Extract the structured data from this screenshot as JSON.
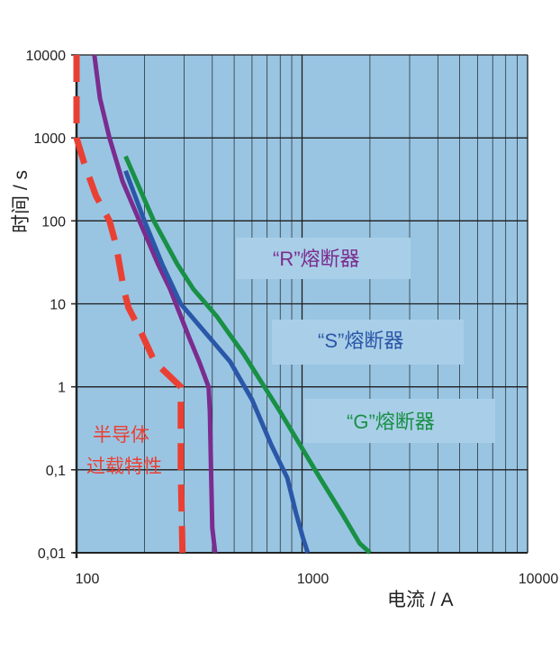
{
  "chart_data": {
    "type": "line",
    "title": "",
    "xlabel": "电流 / A",
    "ylabel": "时间 / s",
    "x_scale": "log",
    "y_scale": "log",
    "xlim": [
      100,
      10000
    ],
    "ylim": [
      0.01,
      10000
    ],
    "x_ticks": [
      "100",
      "1000",
      "10000"
    ],
    "y_ticks": [
      "0,01",
      "0,1",
      "1",
      "10",
      "100",
      "1000",
      "10000"
    ],
    "grid": true,
    "colors": {
      "plot_background": "#99c5e3",
      "grid": "#1e1e1e",
      "label_box": "#a9cfe8"
    },
    "series": [
      {
        "name": "半导体过载特性",
        "color": "#ea4033",
        "style": "dashed",
        "points": [
          [
            100,
            10000
          ],
          [
            100,
            1000
          ],
          [
            108,
            500
          ],
          [
            122,
            200
          ],
          [
            140,
            100
          ],
          [
            150,
            50
          ],
          [
            162,
            15
          ],
          [
            170,
            9
          ],
          [
            190,
            5
          ],
          [
            222,
            2
          ],
          [
            290,
            1
          ],
          [
            290,
            0.1
          ],
          [
            295,
            0.01
          ]
        ]
      },
      {
        "name": "“R”熔断器",
        "color": "#7b2c8e",
        "style": "solid",
        "points": [
          [
            120,
            10000
          ],
          [
            127,
            3000
          ],
          [
            140,
            1000
          ],
          [
            160,
            300
          ],
          [
            190,
            100
          ],
          [
            230,
            30
          ],
          [
            260,
            15
          ],
          [
            285,
            8
          ],
          [
            315,
            4
          ],
          [
            350,
            2
          ],
          [
            385,
            1
          ],
          [
            390,
            0.5
          ],
          [
            395,
            0.1
          ],
          [
            400,
            0.02
          ],
          [
            412,
            0.01
          ]
        ]
      },
      {
        "name": "“S”熔断器",
        "color": "#2b57a8",
        "style": "solid",
        "points": [
          [
            165,
            400
          ],
          [
            200,
            100
          ],
          [
            240,
            30
          ],
          [
            290,
            10
          ],
          [
            360,
            5
          ],
          [
            480,
            2
          ],
          [
            600,
            0.7
          ],
          [
            730,
            0.2
          ],
          [
            860,
            0.08
          ],
          [
            940,
            0.03
          ],
          [
            1010,
            0.015
          ],
          [
            1060,
            0.01
          ]
        ]
      },
      {
        "name": "“G”熔断器",
        "color": "#199045",
        "style": "solid",
        "points": [
          [
            165,
            600
          ],
          [
            220,
            100
          ],
          [
            280,
            30
          ],
          [
            330,
            15
          ],
          [
            420,
            7
          ],
          [
            550,
            2.5
          ],
          [
            800,
            0.5
          ],
          [
            1200,
            0.08
          ],
          [
            1500,
            0.03
          ],
          [
            1800,
            0.013
          ],
          [
            2000,
            0.01
          ]
        ]
      }
    ],
    "annotations": [
      {
        "text": "“R”熔断器",
        "color": "#7b2c8e"
      },
      {
        "text": "“S”熔断器",
        "color": "#2b57a8"
      },
      {
        "text": "“G”熔断器",
        "color": "#199045"
      },
      {
        "text": "半导体",
        "color": "#ea4033"
      },
      {
        "text": "过载特性",
        "color": "#ea4033"
      }
    ]
  }
}
